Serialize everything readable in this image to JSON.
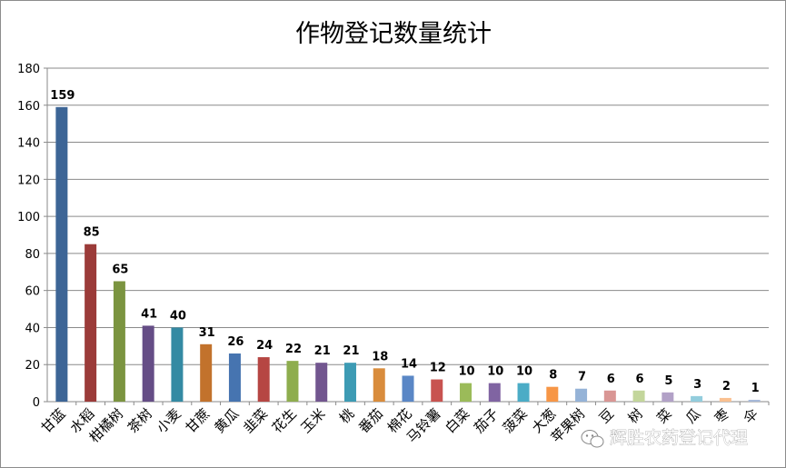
{
  "chart_data": {
    "type": "bar",
    "title": "作物登记数量统计",
    "xlabel": "",
    "ylabel": "",
    "ylim": [
      0,
      180
    ],
    "yticks": [
      0,
      20,
      40,
      60,
      80,
      100,
      120,
      140,
      160,
      180
    ],
    "grid": true,
    "legend": "none",
    "categories": [
      "甘蓝",
      "水稻",
      "柑橘树",
      "茶树",
      "小麦",
      "甘蔗",
      "黄瓜",
      "韭菜",
      "花生",
      "玉米",
      "桃",
      "番茄",
      "棉花",
      "马铃薯",
      "白菜",
      "茄子",
      "菠菜",
      "大葱",
      "苹果树",
      "豆",
      "树",
      "菜",
      "瓜",
      "枣",
      "伞"
    ],
    "values": [
      159,
      85,
      65,
      41,
      40,
      31,
      26,
      24,
      22,
      21,
      21,
      18,
      14,
      12,
      10,
      10,
      10,
      8,
      7,
      6,
      6,
      5,
      3,
      2,
      1
    ],
    "colors": [
      "#3d6596",
      "#9b3b39",
      "#7b9440",
      "#654d86",
      "#348aa3",
      "#c2722c",
      "#4674b0",
      "#b64643",
      "#8ead4e",
      "#72568f",
      "#3d9bb4",
      "#d98c3c",
      "#5a87c6",
      "#c85350",
      "#9bbb59",
      "#8064a2",
      "#4bacc6",
      "#f79646",
      "#95b3d7",
      "#d99694",
      "#c3d69b",
      "#b2a1c7",
      "#93cddd",
      "#fac090",
      "#a6b8d9"
    ]
  },
  "watermark": {
    "icon": "wechat-icon",
    "text": "辉胜农药登记代理"
  }
}
